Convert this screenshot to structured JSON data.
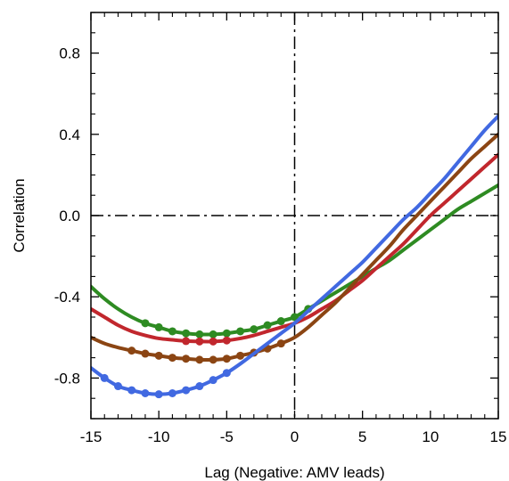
{
  "chart_data": {
    "type": "line",
    "xlabel": "Lag (Negative: AMV leads)",
    "ylabel": "Correlation",
    "xlim": [
      -15,
      15
    ],
    "ylim": [
      -1.0,
      1.0
    ],
    "x_ticks": [
      -15,
      -10,
      -5,
      0,
      5,
      10,
      15
    ],
    "x_tick_labels": [
      "-15",
      "-10",
      "-5",
      "0",
      "5",
      "10",
      "15"
    ],
    "y_ticks": [
      -0.8,
      -0.4,
      0.0,
      0.4,
      0.8
    ],
    "y_tick_labels": [
      "-0.8",
      "-0.4",
      "0.0",
      "0.4",
      "0.8"
    ],
    "reference_lines": {
      "horizontal_at_y": 0.0,
      "vertical_at_x": 0,
      "style": "dash-dot"
    },
    "grid": false,
    "series": [
      {
        "color": "#2e8b22",
        "x": [
          -15,
          -14,
          -13,
          -12,
          -11,
          -10,
          -9,
          -8,
          -7,
          -6,
          -5,
          -4,
          -3,
          -2,
          -1,
          0,
          1,
          2,
          3,
          4,
          5,
          6,
          7,
          8,
          9,
          10,
          11,
          12,
          13,
          14,
          15
        ],
        "y": [
          -0.35,
          -0.41,
          -0.46,
          -0.5,
          -0.53,
          -0.55,
          -0.57,
          -0.58,
          -0.585,
          -0.585,
          -0.58,
          -0.57,
          -0.56,
          -0.54,
          -0.52,
          -0.5,
          -0.46,
          -0.42,
          -0.38,
          -0.34,
          -0.3,
          -0.26,
          -0.22,
          -0.17,
          -0.12,
          -0.07,
          -0.02,
          0.03,
          0.07,
          0.11,
          0.15
        ],
        "markers_x": [
          -11,
          -10,
          -9,
          -8,
          -7,
          -6,
          -5,
          -4,
          -3,
          -2,
          -1,
          0,
          1
        ]
      },
      {
        "color": "#c1272d",
        "x": [
          -15,
          -14,
          -13,
          -12,
          -11,
          -10,
          -9,
          -8,
          -7,
          -6,
          -5,
          -4,
          -3,
          -2,
          -1,
          0,
          1,
          2,
          3,
          4,
          5,
          6,
          7,
          8,
          9,
          10,
          11,
          12,
          13,
          14,
          15
        ],
        "y": [
          -0.46,
          -0.5,
          -0.54,
          -0.57,
          -0.59,
          -0.605,
          -0.612,
          -0.618,
          -0.62,
          -0.62,
          -0.615,
          -0.605,
          -0.59,
          -0.57,
          -0.55,
          -0.53,
          -0.5,
          -0.46,
          -0.42,
          -0.37,
          -0.32,
          -0.26,
          -0.2,
          -0.14,
          -0.07,
          0.0,
          0.06,
          0.12,
          0.18,
          0.24,
          0.3
        ],
        "markers_x": [
          -8,
          -7,
          -6,
          -5
        ]
      },
      {
        "color": "#8b4513",
        "x": [
          -15,
          -14,
          -13,
          -12,
          -11,
          -10,
          -9,
          -8,
          -7,
          -6,
          -5,
          -4,
          -3,
          -2,
          -1,
          0,
          1,
          2,
          3,
          4,
          5,
          6,
          7,
          8,
          9,
          10,
          11,
          12,
          13,
          14,
          15
        ],
        "y": [
          -0.6,
          -0.63,
          -0.65,
          -0.665,
          -0.68,
          -0.69,
          -0.7,
          -0.705,
          -0.71,
          -0.71,
          -0.705,
          -0.69,
          -0.675,
          -0.655,
          -0.63,
          -0.6,
          -0.55,
          -0.49,
          -0.43,
          -0.36,
          -0.29,
          -0.22,
          -0.15,
          -0.07,
          0.0,
          0.07,
          0.14,
          0.21,
          0.28,
          0.34,
          0.4
        ],
        "markers_x": [
          -12,
          -11,
          -10,
          -9,
          -8,
          -7,
          -6,
          -5,
          -4,
          -3,
          -2,
          -1
        ]
      },
      {
        "color": "#4169e1",
        "x": [
          -15,
          -14,
          -13,
          -12,
          -11,
          -10,
          -9,
          -8,
          -7,
          -6,
          -5,
          -4,
          -3,
          -2,
          -1,
          0,
          1,
          2,
          3,
          4,
          5,
          6,
          7,
          8,
          9,
          10,
          11,
          12,
          13,
          14,
          15
        ],
        "y": [
          -0.75,
          -0.8,
          -0.84,
          -0.86,
          -0.875,
          -0.88,
          -0.875,
          -0.86,
          -0.84,
          -0.81,
          -0.775,
          -0.73,
          -0.68,
          -0.63,
          -0.58,
          -0.53,
          -0.47,
          -0.41,
          -0.35,
          -0.29,
          -0.23,
          -0.16,
          -0.09,
          -0.02,
          0.04,
          0.11,
          0.18,
          0.26,
          0.34,
          0.42,
          0.49
        ],
        "markers_x": [
          -14,
          -13,
          -12,
          -11,
          -10,
          -9,
          -8,
          -7,
          -6,
          -5
        ]
      }
    ]
  }
}
